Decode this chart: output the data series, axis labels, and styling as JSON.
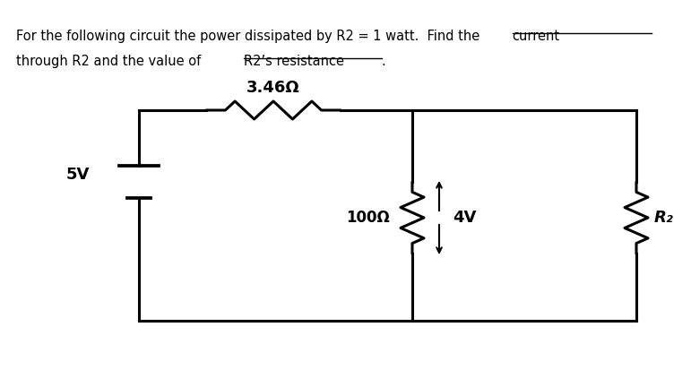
{
  "bg_color": "#ffffff",
  "text_color": "#000000",
  "line_color": "#000000",
  "line_width": 2.2,
  "fig_width": 7.71,
  "fig_height": 4.13,
  "voltage_label": "5V",
  "r1_label": "3.46Ω",
  "r2_label": "R₂",
  "r100_label": "100Ω",
  "v4_label": "4V"
}
